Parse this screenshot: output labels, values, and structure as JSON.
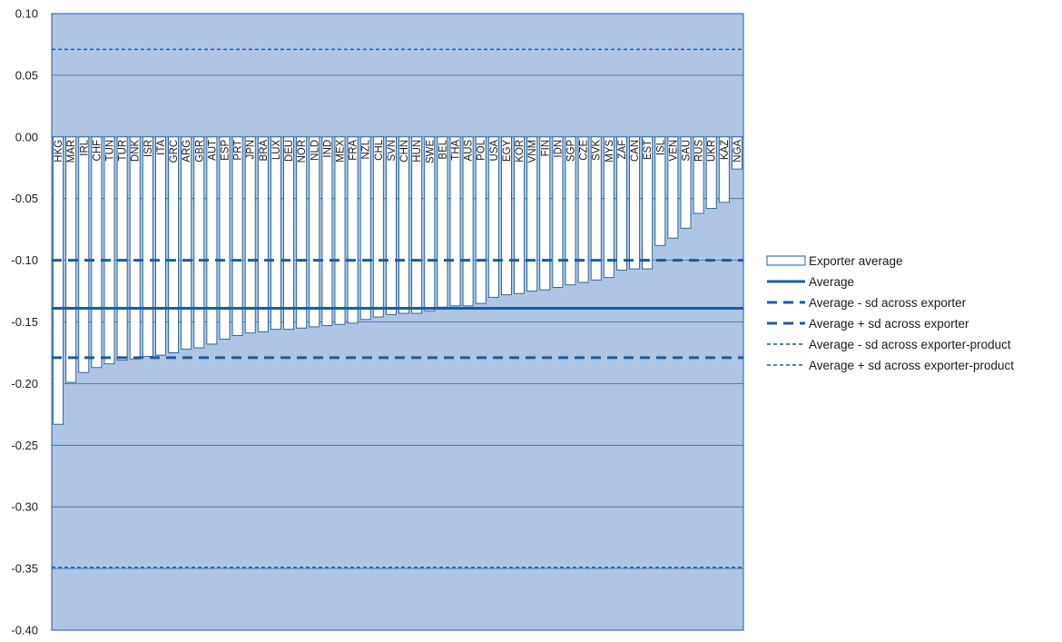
{
  "chart_data": {
    "type": "bar",
    "title": "",
    "xlabel": "",
    "ylabel": "",
    "ylim": [
      -0.4,
      0.1
    ],
    "yticks": [
      "0.10",
      "0.05",
      "0.00",
      "-0.05",
      "-0.10",
      "-0.15",
      "-0.20",
      "-0.25",
      "-0.30",
      "-0.35",
      "-0.40"
    ],
    "ytick_values": [
      0.1,
      0.05,
      0.0,
      -0.05,
      -0.1,
      -0.15,
      -0.2,
      -0.25,
      -0.3,
      -0.35,
      -0.4
    ],
    "grid": true,
    "legend_position": "right",
    "categories": [
      "HKG",
      "MAR",
      "IRL",
      "CHF",
      "TUN",
      "TUR",
      "DNK",
      "ISR",
      "ITA",
      "GRC",
      "ARG",
      "GBR",
      "AUT",
      "ESP",
      "PRT",
      "JPN",
      "BRA",
      "LUX",
      "DEU",
      "NOR",
      "NLD",
      "IND",
      "MEX",
      "FRA",
      "NZL",
      "CHL",
      "SVN",
      "CHN",
      "HUN",
      "SWE",
      "BEL",
      "THA",
      "AUS",
      "POL",
      "USA",
      "EGY",
      "KOR",
      "VNM",
      "FIN",
      "IDN",
      "SGP",
      "CZE",
      "SVK",
      "MYS",
      "ZAF",
      "CAN",
      "EST",
      "ISL",
      "VEN",
      "SAU",
      "RUS",
      "UKR",
      "KAZ",
      "NGA"
    ],
    "series": [
      {
        "name": "Exporter average",
        "kind": "bar",
        "values": [
          -0.233,
          -0.199,
          -0.191,
          -0.187,
          -0.184,
          -0.181,
          -0.18,
          -0.178,
          -0.177,
          -0.175,
          -0.172,
          -0.171,
          -0.168,
          -0.164,
          -0.161,
          -0.159,
          -0.158,
          -0.156,
          -0.156,
          -0.155,
          -0.154,
          -0.153,
          -0.152,
          -0.151,
          -0.148,
          -0.146,
          -0.144,
          -0.143,
          -0.143,
          -0.141,
          -0.138,
          -0.137,
          -0.137,
          -0.135,
          -0.13,
          -0.128,
          -0.127,
          -0.125,
          -0.124,
          -0.122,
          -0.12,
          -0.118,
          -0.116,
          -0.114,
          -0.108,
          -0.107,
          -0.107,
          -0.088,
          -0.082,
          -0.074,
          -0.062,
          -0.058,
          -0.053,
          -0.026
        ]
      },
      {
        "name": "Average",
        "kind": "hline",
        "value": -0.139,
        "style": "solid"
      },
      {
        "name": "Average - sd across exporter",
        "kind": "hline",
        "value": -0.179,
        "style": "dash"
      },
      {
        "name": "Average + sd across exporter",
        "kind": "hline",
        "value": -0.1,
        "style": "dash"
      },
      {
        "name": "Average - sd across exporter-product",
        "kind": "hline",
        "value": -0.349,
        "style": "dot"
      },
      {
        "name": "Average + sd across exporter-product",
        "kind": "hline",
        "value": 0.071,
        "style": "dot"
      }
    ],
    "colors": {
      "plot_bg": "#b0c4e4",
      "bar_fill": "#ffffff",
      "bar_stroke": "#1f5c99",
      "line": "#1f5c99",
      "grid": "#1f5c99"
    }
  }
}
